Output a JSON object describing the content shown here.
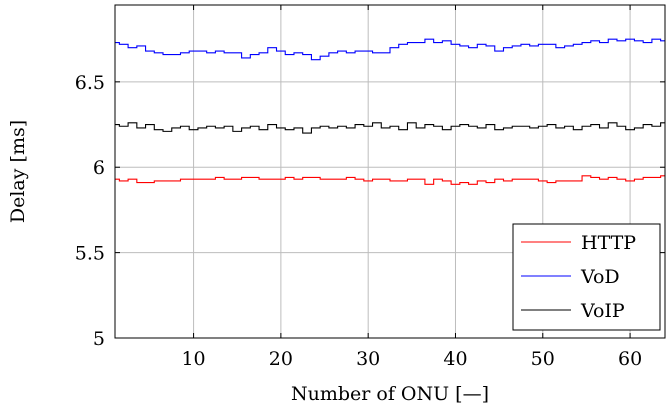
{
  "chart_data": {
    "type": "line",
    "title": "",
    "xlabel": "Number of ONU [—]",
    "ylabel": "Delay [ms]",
    "xlim": [
      1,
      64
    ],
    "ylim": [
      5,
      6.95
    ],
    "xticks": [
      10,
      20,
      30,
      40,
      50,
      60
    ],
    "yticks": [
      5,
      5.5,
      6,
      6.5
    ],
    "xtick_labels": [
      "10",
      "20",
      "30",
      "40",
      "50",
      "60"
    ],
    "ytick_labels": [
      "5",
      "5.5",
      "6",
      "6.5"
    ],
    "grid": true,
    "legend_position": "bottom-right",
    "x": [
      1,
      2,
      3,
      4,
      5,
      6,
      7,
      8,
      9,
      10,
      11,
      12,
      13,
      14,
      15,
      16,
      17,
      18,
      19,
      20,
      21,
      22,
      23,
      24,
      25,
      26,
      27,
      28,
      29,
      30,
      31,
      32,
      33,
      34,
      35,
      36,
      37,
      38,
      39,
      40,
      41,
      42,
      43,
      44,
      45,
      46,
      47,
      48,
      49,
      50,
      51,
      52,
      53,
      54,
      55,
      56,
      57,
      58,
      59,
      60,
      61,
      62,
      63,
      64
    ],
    "series": [
      {
        "name": "HTTP",
        "color": "#ff0000",
        "values": [
          5.93,
          5.92,
          5.93,
          5.91,
          5.91,
          5.92,
          5.92,
          5.92,
          5.93,
          5.93,
          5.93,
          5.93,
          5.94,
          5.93,
          5.93,
          5.94,
          5.94,
          5.93,
          5.93,
          5.93,
          5.94,
          5.93,
          5.94,
          5.94,
          5.93,
          5.93,
          5.93,
          5.94,
          5.93,
          5.92,
          5.93,
          5.93,
          5.92,
          5.92,
          5.93,
          5.93,
          5.9,
          5.93,
          5.92,
          5.9,
          5.91,
          5.9,
          5.92,
          5.91,
          5.93,
          5.92,
          5.93,
          5.93,
          5.93,
          5.92,
          5.91,
          5.92,
          5.92,
          5.92,
          5.95,
          5.94,
          5.93,
          5.94,
          5.93,
          5.92,
          5.93,
          5.94,
          5.94,
          5.95
        ]
      },
      {
        "name": "VoD",
        "color": "#0000ff",
        "values": [
          6.73,
          6.72,
          6.7,
          6.71,
          6.68,
          6.67,
          6.66,
          6.66,
          6.67,
          6.68,
          6.68,
          6.67,
          6.68,
          6.67,
          6.67,
          6.64,
          6.66,
          6.67,
          6.7,
          6.68,
          6.66,
          6.67,
          6.66,
          6.63,
          6.65,
          6.67,
          6.68,
          6.67,
          6.68,
          6.68,
          6.67,
          6.67,
          6.7,
          6.72,
          6.73,
          6.73,
          6.75,
          6.73,
          6.74,
          6.72,
          6.71,
          6.7,
          6.72,
          6.71,
          6.68,
          6.7,
          6.71,
          6.72,
          6.71,
          6.72,
          6.72,
          6.7,
          6.71,
          6.72,
          6.73,
          6.74,
          6.73,
          6.75,
          6.74,
          6.75,
          6.74,
          6.73,
          6.75,
          6.74
        ]
      },
      {
        "name": "VoIP",
        "color": "#000000",
        "values": [
          6.25,
          6.24,
          6.26,
          6.23,
          6.25,
          6.22,
          6.21,
          6.23,
          6.24,
          6.22,
          6.23,
          6.24,
          6.23,
          6.24,
          6.21,
          6.23,
          6.24,
          6.22,
          6.25,
          6.23,
          6.22,
          6.23,
          6.2,
          6.23,
          6.24,
          6.23,
          6.24,
          6.23,
          6.25,
          6.24,
          6.26,
          6.23,
          6.24,
          6.22,
          6.26,
          6.23,
          6.25,
          6.24,
          6.22,
          6.24,
          6.25,
          6.24,
          6.23,
          6.25,
          6.22,
          6.23,
          6.24,
          6.24,
          6.23,
          6.24,
          6.25,
          6.23,
          6.24,
          6.22,
          6.24,
          6.25,
          6.23,
          6.26,
          6.24,
          6.22,
          6.23,
          6.25,
          6.24,
          6.26
        ]
      }
    ]
  }
}
